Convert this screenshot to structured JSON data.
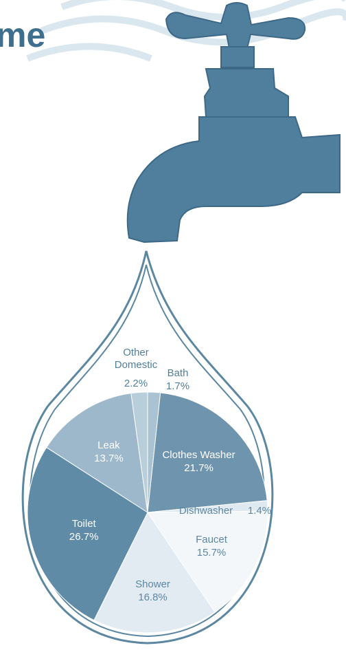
{
  "chart_data": {
    "type": "pie",
    "title": "me",
    "categories": [
      "Bath",
      "Clothes Washer",
      "Dishwasher",
      "Faucet",
      "Shower",
      "Toilet",
      "Leak",
      "Other Domestic"
    ],
    "values": [
      1.7,
      21.7,
      1.4,
      15.7,
      16.8,
      26.7,
      13.7,
      2.2
    ],
    "value_labels": [
      "1.7%",
      "21.7%",
      "1.4%",
      "15.7%",
      "16.8%",
      "26.7%",
      "13.7%",
      "2.2%"
    ],
    "colors": [
      "#a9c3d3",
      "#6f95ae",
      "#dfe9f0",
      "#f3f7f9",
      "#e2ebf1",
      "#5f8ba7",
      "#9cb8ca",
      "#b9cedb"
    ]
  }
}
